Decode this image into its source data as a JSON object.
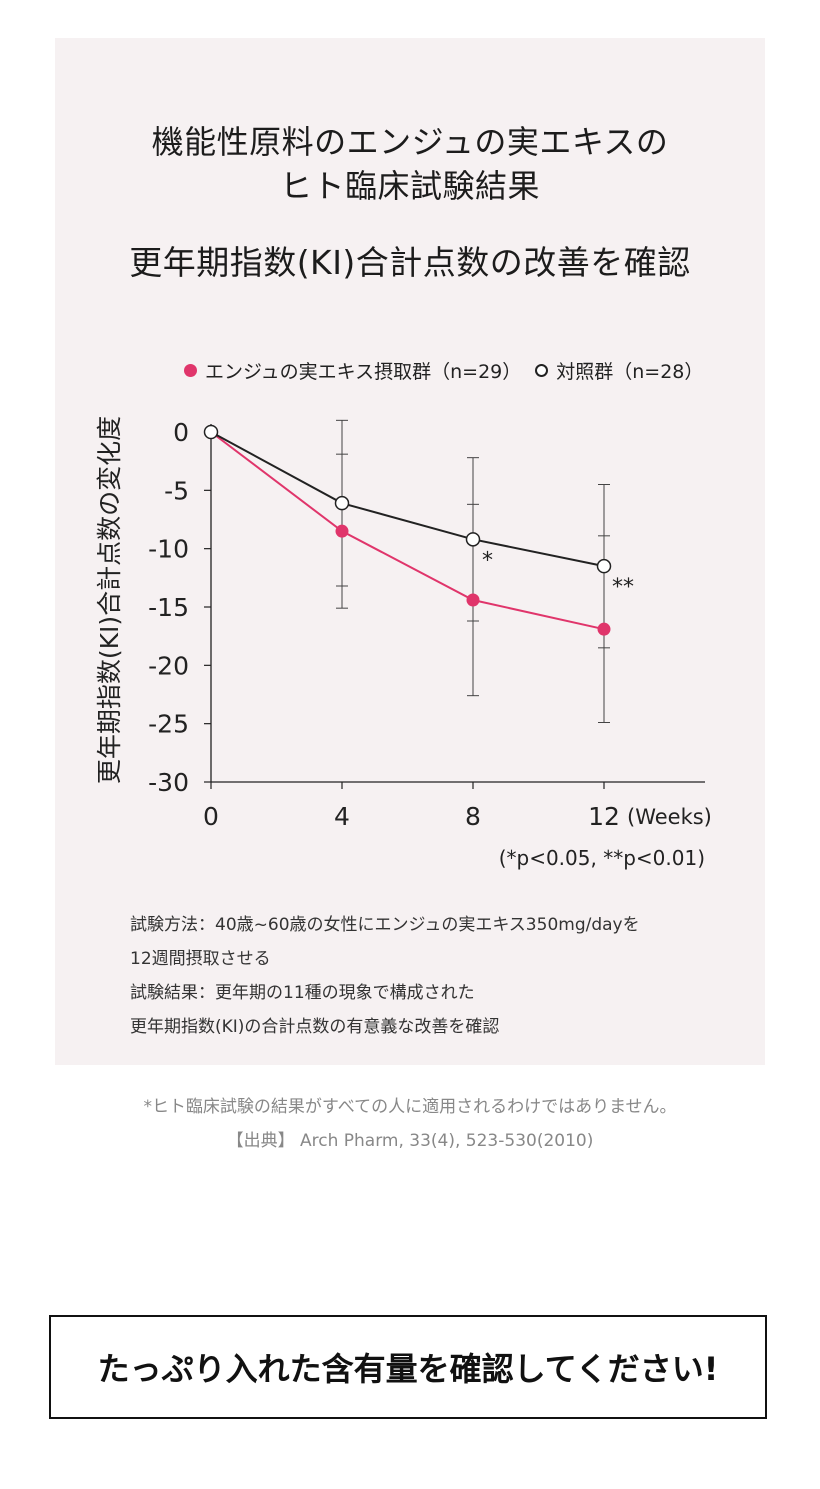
{
  "titles": {
    "line1": "機能性原料のエンジュの実エキスの",
    "line2": "ヒト臨床試験結果",
    "line3": "更年期指数(KI)合計点数の改善を確認"
  },
  "legend": {
    "series1": "エンジュの実エキス摂取群（n=29）",
    "series2": "対照群（n=28）"
  },
  "significance_note": "(*p<0.05, **p<0.01)",
  "method": {
    "line1": "試験方法：40歳~60歳の女性にエンジュの実エキス350mg/dayを",
    "line2": "12週間摂取させる",
    "line3": "試験結果：更年期の11種の現象で構成された",
    "line4": "更年期指数(KI)の合計点数の有意義な改善を確認"
  },
  "disclaimer": "*ヒト臨床試験の結果がすべての人に適用されるわけではありません。",
  "source": "【出典】 Arch Pharm, 33(4), 523-530(2010)",
  "cta_label": "たっぷり入れた含有量を確認してください!",
  "colors": {
    "series1": "#e0356b",
    "series2": "#222222",
    "panel": "#f6f1f2"
  },
  "chart_data": {
    "type": "line",
    "x": [
      0,
      4,
      8,
      12
    ],
    "x_ticks": [
      "0",
      "4",
      "8",
      "12"
    ],
    "x_unit_label": "(Weeks)",
    "ylabel": "更年期指数(KI)合計点数の変化度",
    "y_ticks": [
      0,
      -5,
      -10,
      -15,
      -20,
      -25,
      -30
    ],
    "ylim": [
      -30,
      0
    ],
    "series": [
      {
        "name": "エンジュの実エキス摂取群（n=29）",
        "values": [
          0,
          -8.5,
          -14.4,
          -16.9
        ],
        "error": [
          0,
          6.6,
          8.2,
          8.0
        ],
        "marker": "filled"
      },
      {
        "name": "対照群（n=28）",
        "values": [
          0,
          -6.1,
          -9.2,
          -11.5
        ],
        "error": [
          0,
          7.1,
          7.0,
          7.0
        ],
        "marker": "open"
      }
    ],
    "annotations": [
      {
        "x": 8,
        "text": "*"
      },
      {
        "x": 12,
        "text": "**"
      }
    ]
  }
}
